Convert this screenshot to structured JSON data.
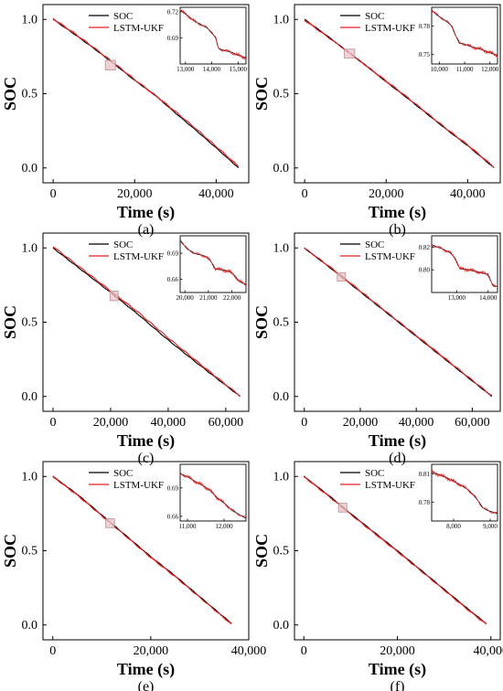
{
  "chart_data": [
    {
      "type": "line",
      "panel_label": "(a)",
      "xlabel": "Time (s)",
      "ylabel": "SOC",
      "xlim": [
        -2500,
        48000
      ],
      "ylim": [
        -0.1,
        1.1
      ],
      "xticks": [
        0,
        20000,
        40000
      ],
      "xtick_labels": [
        "0",
        "20,000",
        "40,000"
      ],
      "yticks": [
        0.0,
        0.5,
        1.0
      ],
      "ytick_labels": [
        "0.0",
        "0.5",
        "1.0"
      ],
      "legend": [
        "SOC",
        "LSTM-UKF"
      ],
      "legend_position": "top-center",
      "series": [
        {
          "name": "SOC",
          "color": "#000000",
          "x": [
            0,
            5000,
            10000,
            15000,
            20000,
            25000,
            30000,
            35000,
            40000,
            45500
          ],
          "y": [
            1.0,
            0.905,
            0.805,
            0.7,
            0.59,
            0.49,
            0.37,
            0.255,
            0.135,
            0.0
          ]
        },
        {
          "name": "LSTM-UKF",
          "color": "#e02020",
          "x": [
            0,
            5000,
            10000,
            15000,
            20000,
            25000,
            30000,
            35000,
            40000,
            45500
          ],
          "y": [
            1.005,
            0.91,
            0.81,
            0.705,
            0.595,
            0.49,
            0.38,
            0.265,
            0.145,
            0.01
          ]
        }
      ],
      "inset": {
        "xlim": [
          12800,
          15300
        ],
        "ylim": [
          0.66,
          0.725
        ],
        "xticks": [
          13000,
          14000,
          15000
        ],
        "xtick_labels": [
          "13,000",
          "14,000",
          "15,000"
        ],
        "yticks": [
          0.69,
          0.72
        ],
        "ytick_labels": [
          "0.69",
          "0.72"
        ],
        "x": [
          12800,
          13100,
          13400,
          13600,
          13800,
          14000,
          14150,
          14250,
          14400,
          14700,
          15000,
          15300
        ],
        "y": [
          0.722,
          0.715,
          0.708,
          0.705,
          0.702,
          0.696,
          0.69,
          0.678,
          0.676,
          0.674,
          0.67,
          0.667
        ]
      }
    },
    {
      "type": "line",
      "panel_label": "(b)",
      "xlabel": "Time (s)",
      "ylabel": "SOC",
      "xlim": [
        -2500,
        48000
      ],
      "ylim": [
        -0.1,
        1.1
      ],
      "xticks": [
        0,
        20000,
        40000
      ],
      "xtick_labels": [
        "0",
        "20,000",
        "40,000"
      ],
      "yticks": [
        0.0,
        0.5,
        1.0
      ],
      "ytick_labels": [
        "0.0",
        "0.5",
        "1.0"
      ],
      "legend": [
        "SOC",
        "LSTM-UKF"
      ],
      "legend_position": "top-center",
      "series": [
        {
          "name": "SOC",
          "color": "#000000",
          "x": [
            0,
            5000,
            10000,
            15000,
            20000,
            25000,
            30000,
            35000,
            40000,
            46500
          ],
          "y": [
            1.0,
            0.9,
            0.795,
            0.69,
            0.58,
            0.475,
            0.365,
            0.255,
            0.15,
            0.0
          ]
        },
        {
          "name": "LSTM-UKF",
          "color": "#e02020",
          "x": [
            0,
            5000,
            10000,
            15000,
            20000,
            25000,
            30000,
            35000,
            40000,
            46500
          ],
          "y": [
            0.995,
            0.895,
            0.795,
            0.69,
            0.585,
            0.48,
            0.37,
            0.26,
            0.155,
            0.005
          ]
        }
      ],
      "inset": {
        "xlim": [
          9700,
          12300
        ],
        "ylim": [
          0.74,
          0.8
        ],
        "xticks": [
          10000,
          11000,
          12000
        ],
        "xtick_labels": [
          "10,000",
          "11,000",
          "12,000"
        ],
        "yticks": [
          0.75,
          0.78
        ],
        "ytick_labels": [
          "0.75",
          "0.78"
        ],
        "x": [
          9700,
          10000,
          10300,
          10500,
          10650,
          10800,
          11000,
          11300,
          11600,
          12000,
          12300
        ],
        "y": [
          0.797,
          0.79,
          0.785,
          0.78,
          0.77,
          0.762,
          0.761,
          0.758,
          0.756,
          0.752,
          0.749
        ]
      }
    },
    {
      "type": "line",
      "panel_label": "(c)",
      "xlabel": "Time (s)",
      "ylabel": "SOC",
      "xlim": [
        -3500,
        68000
      ],
      "ylim": [
        -0.1,
        1.1
      ],
      "xticks": [
        0,
        20000,
        40000,
        60000
      ],
      "xtick_labels": [
        "0",
        "20,000",
        "40,000",
        "60,000"
      ],
      "yticks": [
        0.0,
        0.5,
        1.0
      ],
      "ytick_labels": [
        "0.0",
        "0.5",
        "1.0"
      ],
      "legend": [
        "SOC",
        "LSTM-UKF"
      ],
      "legend_position": "top-center",
      "series": [
        {
          "name": "SOC",
          "color": "#000000",
          "x": [
            0,
            10000,
            20000,
            30000,
            40000,
            50000,
            60000,
            65000
          ],
          "y": [
            1.0,
            0.85,
            0.7,
            0.545,
            0.38,
            0.225,
            0.075,
            0.0
          ]
        },
        {
          "name": "LSTM-UKF",
          "color": "#e02020",
          "x": [
            0,
            10000,
            20000,
            30000,
            40000,
            50000,
            60000,
            65000
          ],
          "y": [
            1.01,
            0.86,
            0.71,
            0.56,
            0.395,
            0.235,
            0.08,
            0.005
          ]
        }
      ],
      "inset": {
        "xlim": [
          19800,
          22600
        ],
        "ylim": [
          0.645,
          0.71
        ],
        "xticks": [
          20000,
          21000,
          22000
        ],
        "xtick_labels": [
          "20,000",
          "21,000",
          "22,000"
        ],
        "yticks": [
          0.66,
          0.69
        ],
        "ytick_labels": [
          "0.66",
          "0.69"
        ],
        "x": [
          19800,
          20100,
          20400,
          20700,
          20900,
          21100,
          21300,
          21600,
          21900,
          22100,
          22300,
          22600
        ],
        "y": [
          0.705,
          0.695,
          0.69,
          0.688,
          0.686,
          0.681,
          0.672,
          0.671,
          0.669,
          0.665,
          0.658,
          0.654
        ]
      }
    },
    {
      "type": "line",
      "panel_label": "(d)",
      "xlabel": "Time (s)",
      "ylabel": "SOC",
      "xlim": [
        -3500,
        70000
      ],
      "ylim": [
        -0.1,
        1.1
      ],
      "xticks": [
        0,
        20000,
        40000,
        60000
      ],
      "xtick_labels": [
        "0",
        "20,000",
        "40,000",
        "60,000"
      ],
      "yticks": [
        0.0,
        0.5,
        1.0
      ],
      "ytick_labels": [
        "0.0",
        "0.5",
        "1.0"
      ],
      "legend": [
        "SOC",
        "LSTM-UKF"
      ],
      "legend_position": "top-center",
      "series": [
        {
          "name": "SOC",
          "color": "#000000",
          "x": [
            0,
            10000,
            20000,
            30000,
            40000,
            50000,
            60000,
            67000
          ],
          "y": [
            1.0,
            0.855,
            0.705,
            0.555,
            0.405,
            0.255,
            0.105,
            0.0
          ]
        },
        {
          "name": "LSTM-UKF",
          "color": "#e02020",
          "x": [
            0,
            10000,
            20000,
            30000,
            40000,
            50000,
            60000,
            67000
          ],
          "y": [
            1.0,
            0.86,
            0.71,
            0.56,
            0.41,
            0.26,
            0.11,
            0.005
          ]
        }
      ],
      "inset": {
        "xlim": [
          12200,
          14300
        ],
        "ylim": [
          0.78,
          0.83
        ],
        "xticks": [
          13000,
          14000
        ],
        "xtick_labels": [
          "13,000",
          "14,000"
        ],
        "yticks": [
          0.8,
          0.82
        ],
        "ytick_labels": [
          "0.80",
          "0.82"
        ],
        "x": [
          12200,
          12500,
          12800,
          12950,
          13100,
          13400,
          13700,
          14000,
          14150,
          14300
        ],
        "y": [
          0.822,
          0.819,
          0.815,
          0.81,
          0.801,
          0.8,
          0.798,
          0.796,
          0.786,
          0.785
        ]
      }
    },
    {
      "type": "line",
      "panel_label": "(e)",
      "xlabel": "Time (s)",
      "ylabel": "SOC",
      "xlim": [
        -2000,
        40000
      ],
      "ylim": [
        -0.1,
        1.1
      ],
      "xticks": [
        0,
        20000,
        40000
      ],
      "xtick_labels": [
        "0",
        "20,000",
        "40,000"
      ],
      "yticks": [
        0.0,
        0.5,
        1.0
      ],
      "ytick_labels": [
        "0.0",
        "0.5",
        "1.0"
      ],
      "legend": [
        "SOC",
        "LSTM-UKF"
      ],
      "legend_position": "top-center",
      "series": [
        {
          "name": "SOC",
          "color": "#000000",
          "x": [
            0,
            5000,
            10000,
            15000,
            20000,
            25000,
            30000,
            36500
          ],
          "y": [
            1.0,
            0.88,
            0.74,
            0.6,
            0.46,
            0.33,
            0.19,
            0.01
          ]
        },
        {
          "name": "LSTM-UKF",
          "color": "#e02020",
          "x": [
            0,
            5000,
            10000,
            15000,
            20000,
            25000,
            30000,
            36500
          ],
          "y": [
            1.0,
            0.875,
            0.735,
            0.595,
            0.455,
            0.325,
            0.185,
            0.005
          ]
        }
      ],
      "inset": {
        "xlim": [
          10800,
          12600
        ],
        "ylim": [
          0.655,
          0.715
        ],
        "xticks": [
          11000,
          12000
        ],
        "xtick_labels": [
          "11,000",
          "12,000"
        ],
        "yticks": [
          0.66,
          0.69
        ],
        "ytick_labels": [
          "0.66",
          "0.69"
        ],
        "x": [
          10800,
          11000,
          11200,
          11400,
          11600,
          11800,
          12000,
          12200,
          12400,
          12600
        ],
        "y": [
          0.705,
          0.702,
          0.697,
          0.693,
          0.688,
          0.68,
          0.674,
          0.667,
          0.662,
          0.658
        ]
      }
    },
    {
      "type": "line",
      "panel_label": "(f)",
      "xlabel": "Time (s)",
      "ylabel": "SOC",
      "xlim": [
        -2000,
        42000
      ],
      "ylim": [
        -0.1,
        1.1
      ],
      "xticks": [
        0,
        20000,
        40000
      ],
      "xtick_labels": [
        "0",
        "20,000",
        "40,000"
      ],
      "yticks": [
        0.0,
        0.5,
        1.0
      ],
      "ytick_labels": [
        "0.0",
        "0.5",
        "1.0"
      ],
      "legend": [
        "SOC",
        "LSTM-UKF"
      ],
      "legend_position": "top-center",
      "series": [
        {
          "name": "SOC",
          "color": "#000000",
          "x": [
            0,
            5000,
            10000,
            15000,
            20000,
            25000,
            30000,
            35000,
            39000
          ],
          "y": [
            1.0,
            0.88,
            0.75,
            0.625,
            0.5,
            0.37,
            0.24,
            0.11,
            0.01
          ]
        },
        {
          "name": "LSTM-UKF",
          "color": "#e02020",
          "x": [
            0,
            5000,
            10000,
            15000,
            20000,
            25000,
            30000,
            35000,
            39000
          ],
          "y": [
            1.0,
            0.875,
            0.745,
            0.62,
            0.495,
            0.365,
            0.235,
            0.105,
            0.005
          ]
        }
      ],
      "inset": {
        "xlim": [
          7400,
          9200
        ],
        "ylim": [
          0.76,
          0.82
        ],
        "xticks": [
          8000,
          9000
        ],
        "xtick_labels": [
          "8,000",
          "9,000"
        ],
        "yticks": [
          0.78,
          0.81
        ],
        "ytick_labels": [
          "0.78",
          "0.81"
        ],
        "x": [
          7400,
          7600,
          7800,
          8000,
          8200,
          8400,
          8600,
          8800,
          9000,
          9200
        ],
        "y": [
          0.812,
          0.809,
          0.806,
          0.802,
          0.798,
          0.793,
          0.785,
          0.774,
          0.77,
          0.768
        ]
      }
    }
  ]
}
